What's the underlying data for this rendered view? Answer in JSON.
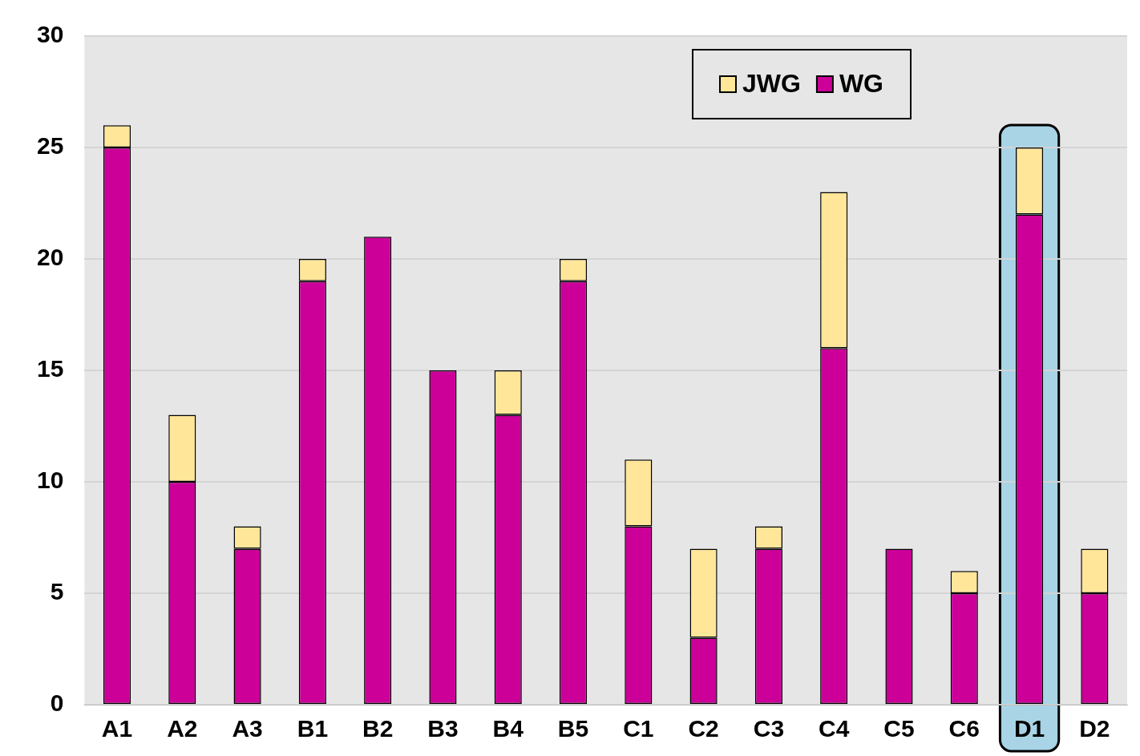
{
  "chart_data": {
    "type": "bar",
    "stacked": true,
    "categories": [
      "A1",
      "A2",
      "A3",
      "B1",
      "B2",
      "B3",
      "B4",
      "B5",
      "C1",
      "C2",
      "C3",
      "C4",
      "C5",
      "C6",
      "D1",
      "D2"
    ],
    "series": [
      {
        "name": "WG",
        "color": "#cc0099",
        "values": [
          25,
          10,
          7,
          19,
          21,
          15,
          13,
          19,
          8,
          3,
          7,
          16,
          7,
          5,
          22,
          5
        ]
      },
      {
        "name": "JWG",
        "color": "#ffe699",
        "values": [
          1,
          3,
          1,
          1,
          0,
          0,
          2,
          1,
          3,
          4,
          1,
          7,
          0,
          1,
          3,
          2
        ]
      }
    ],
    "ylim": [
      0,
      30
    ],
    "yticks": [
      0,
      5,
      10,
      15,
      20,
      25,
      30
    ],
    "grid": "y",
    "legend": "top right",
    "bands": [
      {
        "axis": "x",
        "from": "D1",
        "to": "D1",
        "color": "#a8d4e6"
      }
    ]
  }
}
